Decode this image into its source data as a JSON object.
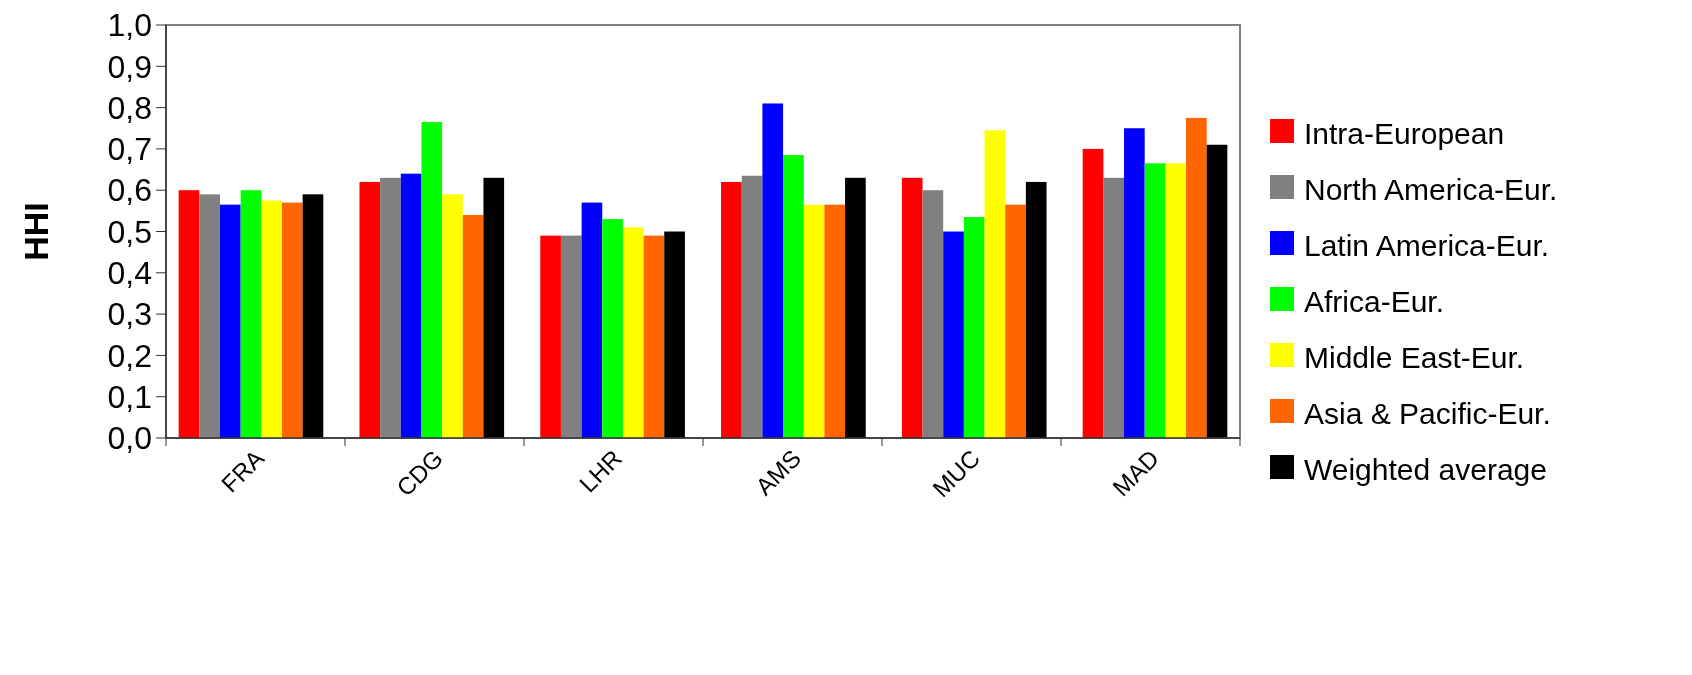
{
  "chart_data": {
    "type": "bar",
    "ylabel": "HHI",
    "categories": [
      "FRA",
      "CDG",
      "LHR",
      "AMS",
      "MUC",
      "MAD"
    ],
    "series": [
      {
        "name": "Intra-European",
        "color": "#ff0000",
        "values": [
          0.6,
          0.62,
          0.49,
          0.62,
          0.63,
          0.7
        ]
      },
      {
        "name": "North America-Eur.",
        "color": "#808080",
        "values": [
          0.59,
          0.63,
          0.49,
          0.635,
          0.6,
          0.63
        ]
      },
      {
        "name": "Latin America-Eur.",
        "color": "#0000ff",
        "values": [
          0.565,
          0.64,
          0.57,
          0.81,
          0.5,
          0.75
        ]
      },
      {
        "name": "Africa-Eur.",
        "color": "#00ff00",
        "values": [
          0.6,
          0.765,
          0.53,
          0.685,
          0.535,
          0.665
        ]
      },
      {
        "name": "Middle East-Eur.",
        "color": "#ffff00",
        "values": [
          0.575,
          0.59,
          0.51,
          0.565,
          0.745,
          0.665
        ]
      },
      {
        "name": "Asia & Pacific-Eur.",
        "color": "#ff6600",
        "values": [
          0.57,
          0.54,
          0.49,
          0.565,
          0.565,
          0.775
        ]
      },
      {
        "name": "Weighted average",
        "color": "#000000",
        "values": [
          0.59,
          0.63,
          0.5,
          0.63,
          0.62,
          0.71
        ]
      }
    ],
    "ylim": [
      0,
      1
    ],
    "yticks": [
      {
        "value": 0,
        "label": "0,0"
      },
      {
        "value": 0.1,
        "label": "0,1"
      },
      {
        "value": 0.2,
        "label": "0,2"
      },
      {
        "value": 0.3,
        "label": "0,3"
      },
      {
        "value": 0.4,
        "label": "0,4"
      },
      {
        "value": 0.5,
        "label": "0,5"
      },
      {
        "value": 0.6,
        "label": "0,6"
      },
      {
        "value": 0.7,
        "label": "0,7"
      },
      {
        "value": 0.8,
        "label": "0,8"
      },
      {
        "value": 0.9,
        "label": "0,9"
      },
      {
        "value": 1,
        "label": "1,0"
      }
    ],
    "legend": "right"
  }
}
